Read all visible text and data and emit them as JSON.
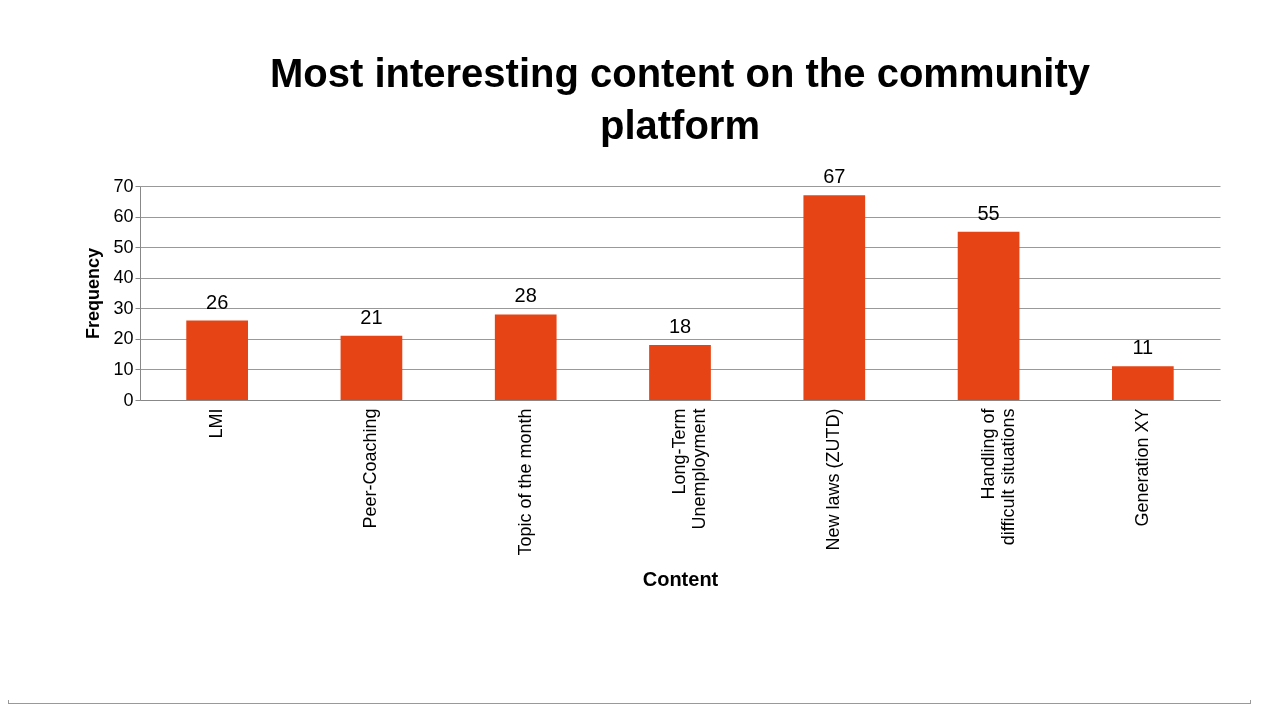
{
  "chart_data": {
    "type": "bar",
    "title": "Most interesting content on the community platform",
    "xlabel": "Content",
    "ylabel": "Frequency",
    "categories": [
      "LMI",
      "Peer-Coaching",
      "Topic of the month",
      "Long-Term Unemployment",
      "New laws (ZUTD)",
      "Handling of difficult situations",
      "Generation XY"
    ],
    "values": [
      26,
      21,
      28,
      18,
      67,
      55,
      11
    ],
    "color": "#e64415",
    "ylim": [
      0,
      70
    ],
    "yticks": [
      0,
      10,
      20,
      30,
      40,
      50,
      60,
      70
    ],
    "grid": "y",
    "data_labels": true
  }
}
